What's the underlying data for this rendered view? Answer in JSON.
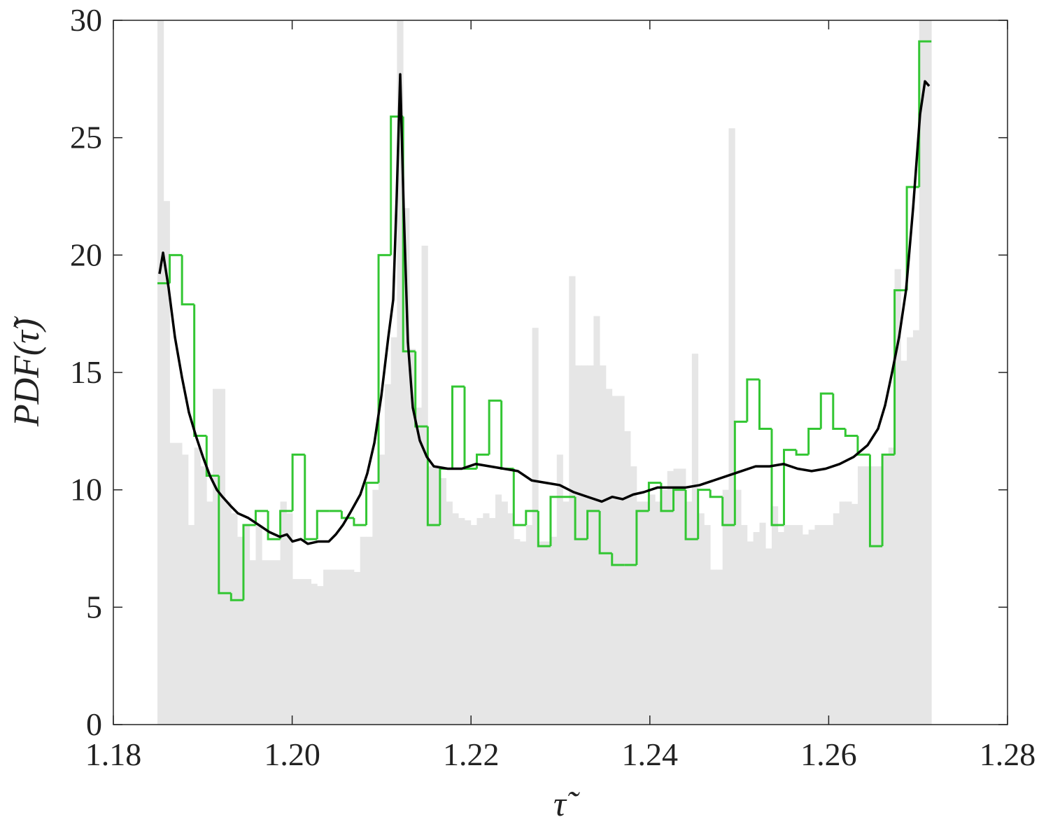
{
  "chart_data": {
    "type": "histogram",
    "xlabel": "τ̃",
    "ylabel": "PDF(τ̃)",
    "xlim": [
      1.18,
      1.28
    ],
    "ylim": [
      0,
      30
    ],
    "xticks": [
      1.18,
      {
        "value": 1.2,
        "label": "1.20"
      },
      1.22,
      1.24,
      1.26,
      1.28
    ],
    "yticks": [
      0,
      5,
      10,
      15,
      20,
      25,
      30
    ],
    "series": [
      {
        "type": "histogram",
        "style": "filled",
        "color": "#e6e6e6",
        "bins": [
          1.18493,
          1.18562,
          1.1863,
          1.18699,
          1.18768,
          1.18837,
          1.18905,
          1.18974,
          1.19043,
          1.19111,
          1.1918,
          1.19249,
          1.19317,
          1.19386,
          1.19455,
          1.19524,
          1.19592,
          1.19661,
          1.1973,
          1.19798,
          1.19867,
          1.19936,
          1.20004,
          1.20073,
          1.20142,
          1.20211,
          1.20279,
          1.20348,
          1.20417,
          1.20485,
          1.20554,
          1.20623,
          1.20691,
          1.2076,
          1.20829,
          1.20898,
          1.20966,
          1.21035,
          1.21104,
          1.21172,
          1.21241,
          1.2131,
          1.21378,
          1.21447,
          1.21516,
          1.21585,
          1.21653,
          1.21722,
          1.21791,
          1.21859,
          1.21928,
          1.21997,
          1.22065,
          1.22134,
          1.22203,
          1.22272,
          1.2234,
          1.22409,
          1.22478,
          1.22546,
          1.22615,
          1.22684,
          1.22752,
          1.22821,
          1.2289,
          1.22959,
          1.23027,
          1.23096,
          1.23165,
          1.23233,
          1.23302,
          1.23371,
          1.23439,
          1.23508,
          1.23577,
          1.23646,
          1.23714,
          1.23783,
          1.23852,
          1.2392,
          1.23989,
          1.24058,
          1.24126,
          1.24195,
          1.24264,
          1.24333,
          1.24401,
          1.2447,
          1.24539,
          1.24607,
          1.24676,
          1.24745,
          1.24813,
          1.24882,
          1.24951,
          1.2502,
          1.25088,
          1.25157,
          1.25226,
          1.25294,
          1.25363,
          1.25432,
          1.255,
          1.25569,
          1.25638,
          1.25707,
          1.25775,
          1.25844,
          1.25913,
          1.25981,
          1.2605,
          1.26119,
          1.26187,
          1.26256,
          1.26325,
          1.26394,
          1.26462,
          1.26531,
          1.266,
          1.26668,
          1.26737,
          1.26806,
          1.26874,
          1.26943,
          1.27012,
          1.27081,
          1.27149
        ],
        "values": [
          30,
          22.3,
          12,
          12,
          11.5,
          8.5,
          11.8,
          11,
          9.5,
          14.3,
          14.3,
          9.5,
          9,
          8,
          8.5,
          7,
          8.5,
          7,
          7,
          7,
          9.5,
          9,
          6.2,
          6.2,
          6.2,
          6,
          5.9,
          6.6,
          6.6,
          6.6,
          6.6,
          6.6,
          6.5,
          8,
          8,
          10,
          11.5,
          14.5,
          16.5,
          30,
          22,
          16,
          13.5,
          20.4,
          11,
          11,
          10.5,
          9.5,
          9,
          8.8,
          8.7,
          8.5,
          8.8,
          9,
          8.8,
          9.8,
          9.5,
          9,
          7.9,
          7.8,
          8.5,
          16.9,
          7.8,
          7.8,
          8,
          11.5,
          9.5,
          19.1,
          15.3,
          15.3,
          15.3,
          17.4,
          15.3,
          14.3,
          14,
          14,
          12.5,
          11,
          9.5,
          9.5,
          9.8,
          9.5,
          10,
          10.8,
          10.9,
          10.9,
          9.5,
          15.8,
          9,
          8.5,
          6.6,
          6.6,
          10,
          25.4,
          10,
          8.5,
          7.8,
          8.2,
          8.6,
          7.5,
          9.3,
          8.2,
          8.5,
          8.5,
          8.5,
          8.1,
          8.3,
          8.5,
          8.5,
          8.5,
          9,
          9.5,
          9.5,
          9.4,
          11,
          11,
          11,
          11,
          11.5,
          11.8,
          19.4,
          15.5,
          16.5,
          16.8,
          30,
          30
        ]
      },
      {
        "type": "histogram",
        "style": "stairs",
        "color": "#33c633",
        "bins": [
          1.18493,
          1.1863,
          1.18768,
          1.18905,
          1.19043,
          1.1918,
          1.19317,
          1.19455,
          1.19592,
          1.1973,
          1.19867,
          1.20004,
          1.20142,
          1.20279,
          1.20417,
          1.20554,
          1.20691,
          1.20829,
          1.20966,
          1.21104,
          1.21241,
          1.21378,
          1.21516,
          1.21653,
          1.21791,
          1.21928,
          1.22065,
          1.22203,
          1.2234,
          1.22478,
          1.22615,
          1.22752,
          1.2289,
          1.23027,
          1.23165,
          1.23302,
          1.23439,
          1.23577,
          1.23714,
          1.23852,
          1.23989,
          1.24126,
          1.24264,
          1.24401,
          1.24539,
          1.24676,
          1.24813,
          1.24951,
          1.25088,
          1.25226,
          1.25363,
          1.255,
          1.25638,
          1.25775,
          1.25913,
          1.2605,
          1.26187,
          1.26325,
          1.26462,
          1.266,
          1.26737,
          1.26874,
          1.27012,
          1.27149
        ],
        "values": [
          18.8,
          20,
          17.9,
          12.3,
          10.6,
          5.6,
          5.3,
          8.5,
          9.1,
          7.9,
          9.1,
          11.5,
          7.9,
          9.1,
          9.1,
          8.8,
          8.5,
          10.3,
          20,
          25.9,
          15.9,
          12.7,
          8.5,
          10.9,
          14.4,
          10.9,
          11.5,
          13.8,
          10.9,
          8.5,
          9.1,
          7.6,
          9.7,
          9.7,
          7.9,
          9.1,
          7.3,
          6.8,
          6.8,
          9.1,
          10.3,
          9.1,
          10,
          7.9,
          10,
          9.7,
          8.5,
          12.9,
          14.7,
          12.6,
          8.5,
          11.7,
          11.5,
          12.6,
          14.1,
          12.6,
          12.3,
          11.5,
          7.6,
          11.5,
          18.5,
          22.9,
          29.1
        ]
      },
      {
        "type": "line",
        "color": "#000000",
        "x": [
          1.18516,
          1.18556,
          1.18618,
          1.18689,
          1.18767,
          1.18845,
          1.18923,
          1.19002,
          1.1908,
          1.19158,
          1.19221,
          1.19315,
          1.19393,
          1.1951,
          1.19628,
          1.19745,
          1.19862,
          1.19941,
          1.20003,
          1.20097,
          1.20175,
          1.20293,
          1.2041,
          1.20488,
          1.20567,
          1.20645,
          1.20762,
          1.2084,
          1.20919,
          1.20997,
          1.21075,
          1.2113,
          1.21169,
          1.21208,
          1.21247,
          1.21294,
          1.21349,
          1.21427,
          1.21506,
          1.21584,
          1.2174,
          1.21897,
          1.22053,
          1.2221,
          1.22366,
          1.22523,
          1.22679,
          1.22836,
          1.22992,
          1.23149,
          1.23305,
          1.23462,
          1.23579,
          1.23696,
          1.23814,
          1.23931,
          1.24088,
          1.24244,
          1.24401,
          1.24557,
          1.24714,
          1.2487,
          1.25027,
          1.25183,
          1.2534,
          1.25496,
          1.25653,
          1.25809,
          1.25966,
          1.26122,
          1.26279,
          1.26435,
          1.26552,
          1.26631,
          1.26709,
          1.26787,
          1.26865,
          1.26944,
          1.27022,
          1.27077,
          1.27124
        ],
        "values": [
          19.2,
          20.1,
          18.6,
          16.5,
          14.8,
          13.3,
          12.3,
          11.4,
          10.6,
          10,
          9.7,
          9.3,
          9,
          8.8,
          8.5,
          8.2,
          8,
          8.1,
          7.8,
          7.9,
          7.7,
          7.8,
          7.8,
          8.1,
          8.5,
          9,
          9.8,
          10.7,
          12,
          14,
          16.5,
          18.1,
          22.5,
          27.7,
          22,
          16.3,
          13.5,
          12.1,
          11.4,
          11,
          10.9,
          10.9,
          11.1,
          11,
          10.9,
          10.8,
          10.4,
          10.3,
          10.2,
          9.9,
          9.7,
          9.5,
          9.7,
          9.6,
          9.8,
          9.9,
          10.1,
          10.1,
          10.1,
          10.2,
          10.4,
          10.6,
          10.8,
          11,
          11,
          11.1,
          10.9,
          10.8,
          10.9,
          11.1,
          11.4,
          11.9,
          12.6,
          13.6,
          15,
          16.5,
          18.5,
          22,
          26,
          27.4,
          27.2
        ]
      }
    ]
  }
}
